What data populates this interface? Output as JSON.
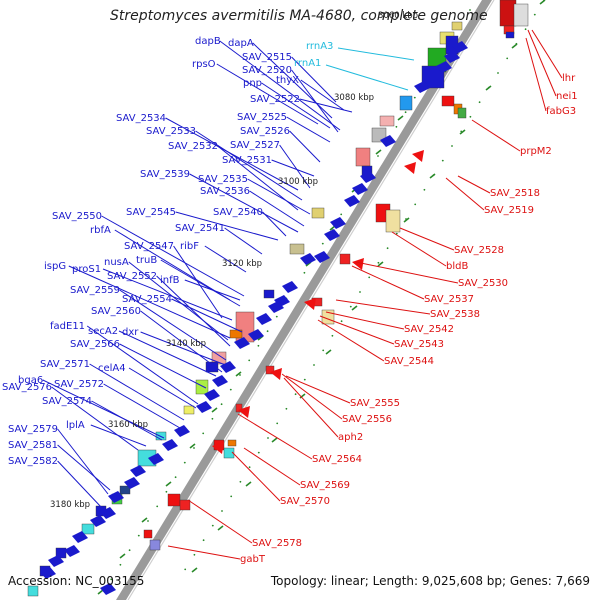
{
  "header": {
    "title": "Streptomyces avermitilis MA-4680, complete genome"
  },
  "footer": {
    "accession": "Accession: NC_003155",
    "summary": "Topology: linear; Length: 9,025,608 bp; Genes: 7,669"
  },
  "colors": {
    "forward_label": "#1a1acc",
    "rna_label": "#22bbdd",
    "reverse_label": "#dd1111",
    "backbone": "#9a9a9a",
    "tick": "#2a8a2a"
  },
  "kbp_ticks": [
    "3060 kbp",
    "3080 kbp",
    "3100 kbp",
    "3120 kbp",
    "3140 kbp",
    "3160 kbp",
    "3180 kbp"
  ],
  "forward_genes": [
    {
      "name": "dapB"
    },
    {
      "name": "dapA"
    },
    {
      "name": "SAV_2515"
    },
    {
      "name": "rpsO"
    },
    {
      "name": "SAV_2520"
    },
    {
      "name": "thyX"
    },
    {
      "name": "pnp"
    },
    {
      "name": "SAV_2522"
    },
    {
      "name": "SAV_2534"
    },
    {
      "name": "SAV_2525"
    },
    {
      "name": "SAV_2533"
    },
    {
      "name": "SAV_2526"
    },
    {
      "name": "SAV_2532"
    },
    {
      "name": "SAV_2527"
    },
    {
      "name": "SAV_2531"
    },
    {
      "name": "SAV_2539"
    },
    {
      "name": "SAV_2535"
    },
    {
      "name": "SAV_2536"
    },
    {
      "name": "SAV_2550"
    },
    {
      "name": "SAV_2545"
    },
    {
      "name": "SAV_2540"
    },
    {
      "name": "rbfA"
    },
    {
      "name": "SAV_2541"
    },
    {
      "name": "SAV_2547"
    },
    {
      "name": "ribF"
    },
    {
      "name": "ispG"
    },
    {
      "name": "proS1"
    },
    {
      "name": "truB"
    },
    {
      "name": "nusA"
    },
    {
      "name": "SAV_2552"
    },
    {
      "name": "infB"
    },
    {
      "name": "SAV_2559"
    },
    {
      "name": "SAV_2554"
    },
    {
      "name": "SAV_2560"
    },
    {
      "name": "fadE11"
    },
    {
      "name": "secA2"
    },
    {
      "name": "dxr"
    },
    {
      "name": "SAV_2566"
    },
    {
      "name": "bga6"
    },
    {
      "name": "celA4"
    },
    {
      "name": "SAV_2571"
    },
    {
      "name": "SAV_2576"
    },
    {
      "name": "SAV_2572"
    },
    {
      "name": "SAV_2574"
    },
    {
      "name": "SAV_2579"
    },
    {
      "name": "lplA"
    },
    {
      "name": "SAV_2581"
    },
    {
      "name": "SAV_2582"
    }
  ],
  "rna_genes": [
    {
      "name": "rrnA3"
    },
    {
      "name": "rrnA1"
    }
  ],
  "reverse_genes": [
    {
      "name": "lhr"
    },
    {
      "name": "nei1"
    },
    {
      "name": "fabG3"
    },
    {
      "name": "prpM2"
    },
    {
      "name": "SAV_2518"
    },
    {
      "name": "SAV_2519"
    },
    {
      "name": "SAV_2528"
    },
    {
      "name": "bldB"
    },
    {
      "name": "SAV_2530"
    },
    {
      "name": "SAV_2537"
    },
    {
      "name": "SAV_2538"
    },
    {
      "name": "SAV_2542"
    },
    {
      "name": "SAV_2543"
    },
    {
      "name": "SAV_2544"
    },
    {
      "name": "SAV_2555"
    },
    {
      "name": "SAV_2556"
    },
    {
      "name": "aph2"
    },
    {
      "name": "SAV_2564"
    },
    {
      "name": "SAV_2569"
    },
    {
      "name": "SAV_2570"
    },
    {
      "name": "SAV_2578"
    },
    {
      "name": "gabT"
    }
  ]
}
